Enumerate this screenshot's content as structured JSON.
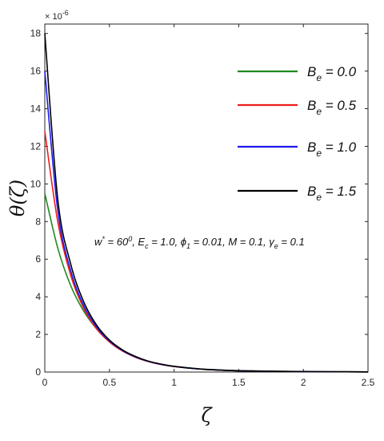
{
  "chart_data": {
    "type": "line",
    "xlabel": "ζ",
    "ylabel": "θ(ζ)",
    "xlim": [
      0,
      2.5
    ],
    "ylim": [
      0,
      18.5
    ],
    "y_exponent_label": "× 10",
    "y_exponent_power": "-6",
    "xticks": [
      0,
      0.5,
      1,
      1.5,
      2,
      2.5
    ],
    "xtick_labels": [
      "0",
      "0.5",
      "1",
      "1.5",
      "2",
      "2.5"
    ],
    "yticks": [
      0,
      2,
      4,
      6,
      8,
      10,
      12,
      14,
      16,
      18
    ],
    "ytick_labels": [
      "0",
      "2",
      "4",
      "6",
      "8",
      "10",
      "12",
      "14",
      "16",
      "18"
    ],
    "grid": false,
    "legend_position": "top-right",
    "x": [
      0,
      0.1,
      0.2,
      0.3,
      0.4,
      0.5,
      0.6,
      0.7,
      0.8,
      0.9,
      1.0,
      1.2,
      1.4,
      1.6,
      1.8,
      2.0,
      2.2,
      2.5
    ],
    "series": [
      {
        "name": "B_e = 0.0",
        "legend_base": "B",
        "legend_sub": "e",
        "legend_value": " = 0.0",
        "color": "#1f8a1f",
        "values": [
          9.5,
          6.6,
          4.6,
          3.25,
          2.3,
          1.62,
          1.14,
          0.8,
          0.57,
          0.41,
          0.3,
          0.17,
          0.1,
          0.06,
          0.04,
          0.03,
          0.02,
          0.01
        ]
      },
      {
        "name": "B_e = 0.5",
        "legend_base": "B",
        "legend_sub": "e",
        "legend_value": " = 0.5",
        "color": "#ee1c1c",
        "values": [
          12.8,
          8.0,
          5.15,
          3.4,
          2.3,
          1.6,
          1.12,
          0.79,
          0.56,
          0.4,
          0.29,
          0.16,
          0.09,
          0.055,
          0.035,
          0.025,
          0.015,
          0.008
        ]
      },
      {
        "name": "B_e = 1.0",
        "legend_base": "B",
        "legend_sub": "e",
        "legend_value": " = 1.0",
        "color": "#1c1cee",
        "values": [
          16.0,
          8.6,
          5.4,
          3.55,
          2.4,
          1.65,
          1.15,
          0.81,
          0.57,
          0.41,
          0.3,
          0.16,
          0.09,
          0.055,
          0.035,
          0.025,
          0.015,
          0.008
        ]
      },
      {
        "name": "B_e = 1.5",
        "legend_base": "B",
        "legend_sub": "e",
        "legend_value": " = 1.5",
        "color": "#000000",
        "values": [
          18.0,
          9.2,
          5.75,
          3.75,
          2.5,
          1.7,
          1.18,
          0.83,
          0.58,
          0.42,
          0.3,
          0.16,
          0.09,
          0.055,
          0.035,
          0.025,
          0.015,
          0.008
        ]
      }
    ],
    "annotation": [
      {
        "t": "w",
        "s": "n"
      },
      {
        "t": "*",
        "s": "sup"
      },
      {
        "t": " = 60",
        "s": "n"
      },
      {
        "t": "0",
        "s": "sup"
      },
      {
        "t": ", E",
        "s": "n"
      },
      {
        "t": "c",
        "s": "sub"
      },
      {
        "t": " = 1.0, ",
        "s": "n"
      },
      {
        "t": "ϕ",
        "s": "n"
      },
      {
        "t": "1",
        "s": "sub"
      },
      {
        "t": " = 0.01, M = 0.1, ",
        "s": "n"
      },
      {
        "t": "γ",
        "s": "n"
      },
      {
        "t": "e",
        "s": "sub"
      },
      {
        "t": " = 0.1",
        "s": "n"
      }
    ]
  }
}
